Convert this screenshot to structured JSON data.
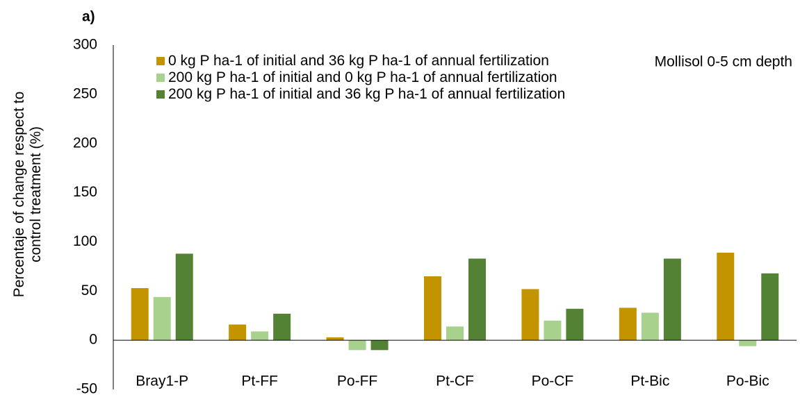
{
  "chart_data": {
    "type": "bar",
    "panel_label": "a)",
    "y_label": "Percentaje of change respect to control treatment (%)",
    "annotation": "Mollisol 0-5 cm depth",
    "categories": [
      "Bray1-P",
      "Pt-FF",
      "Po-FF",
      "Pt-CF",
      "Po-CF",
      "Pt-Bic",
      "Po-Bic"
    ],
    "series": [
      {
        "name": "0 kg P ha-1 of initial and 36 kg P ha-1 of annual fertilization",
        "color": "#c49300",
        "values": [
          53,
          16,
          3,
          65,
          52,
          33,
          89
        ]
      },
      {
        "name": "200 kg P ha-1 of initial and 0 kg P ha-1 of annual fertilization",
        "color": "#a9d18e",
        "values": [
          44,
          9,
          -10,
          14,
          20,
          28,
          -6
        ]
      },
      {
        "name": "200 kg P ha-1 of initial and 36 kg P ha-1 of annual fertilization",
        "color": "#548235",
        "values": [
          88,
          27,
          -10,
          83,
          32,
          83,
          68
        ]
      }
    ],
    "ylim": [
      -50,
      300
    ],
    "yticks": [
      -50,
      0,
      50,
      100,
      150,
      200,
      250,
      300
    ]
  }
}
